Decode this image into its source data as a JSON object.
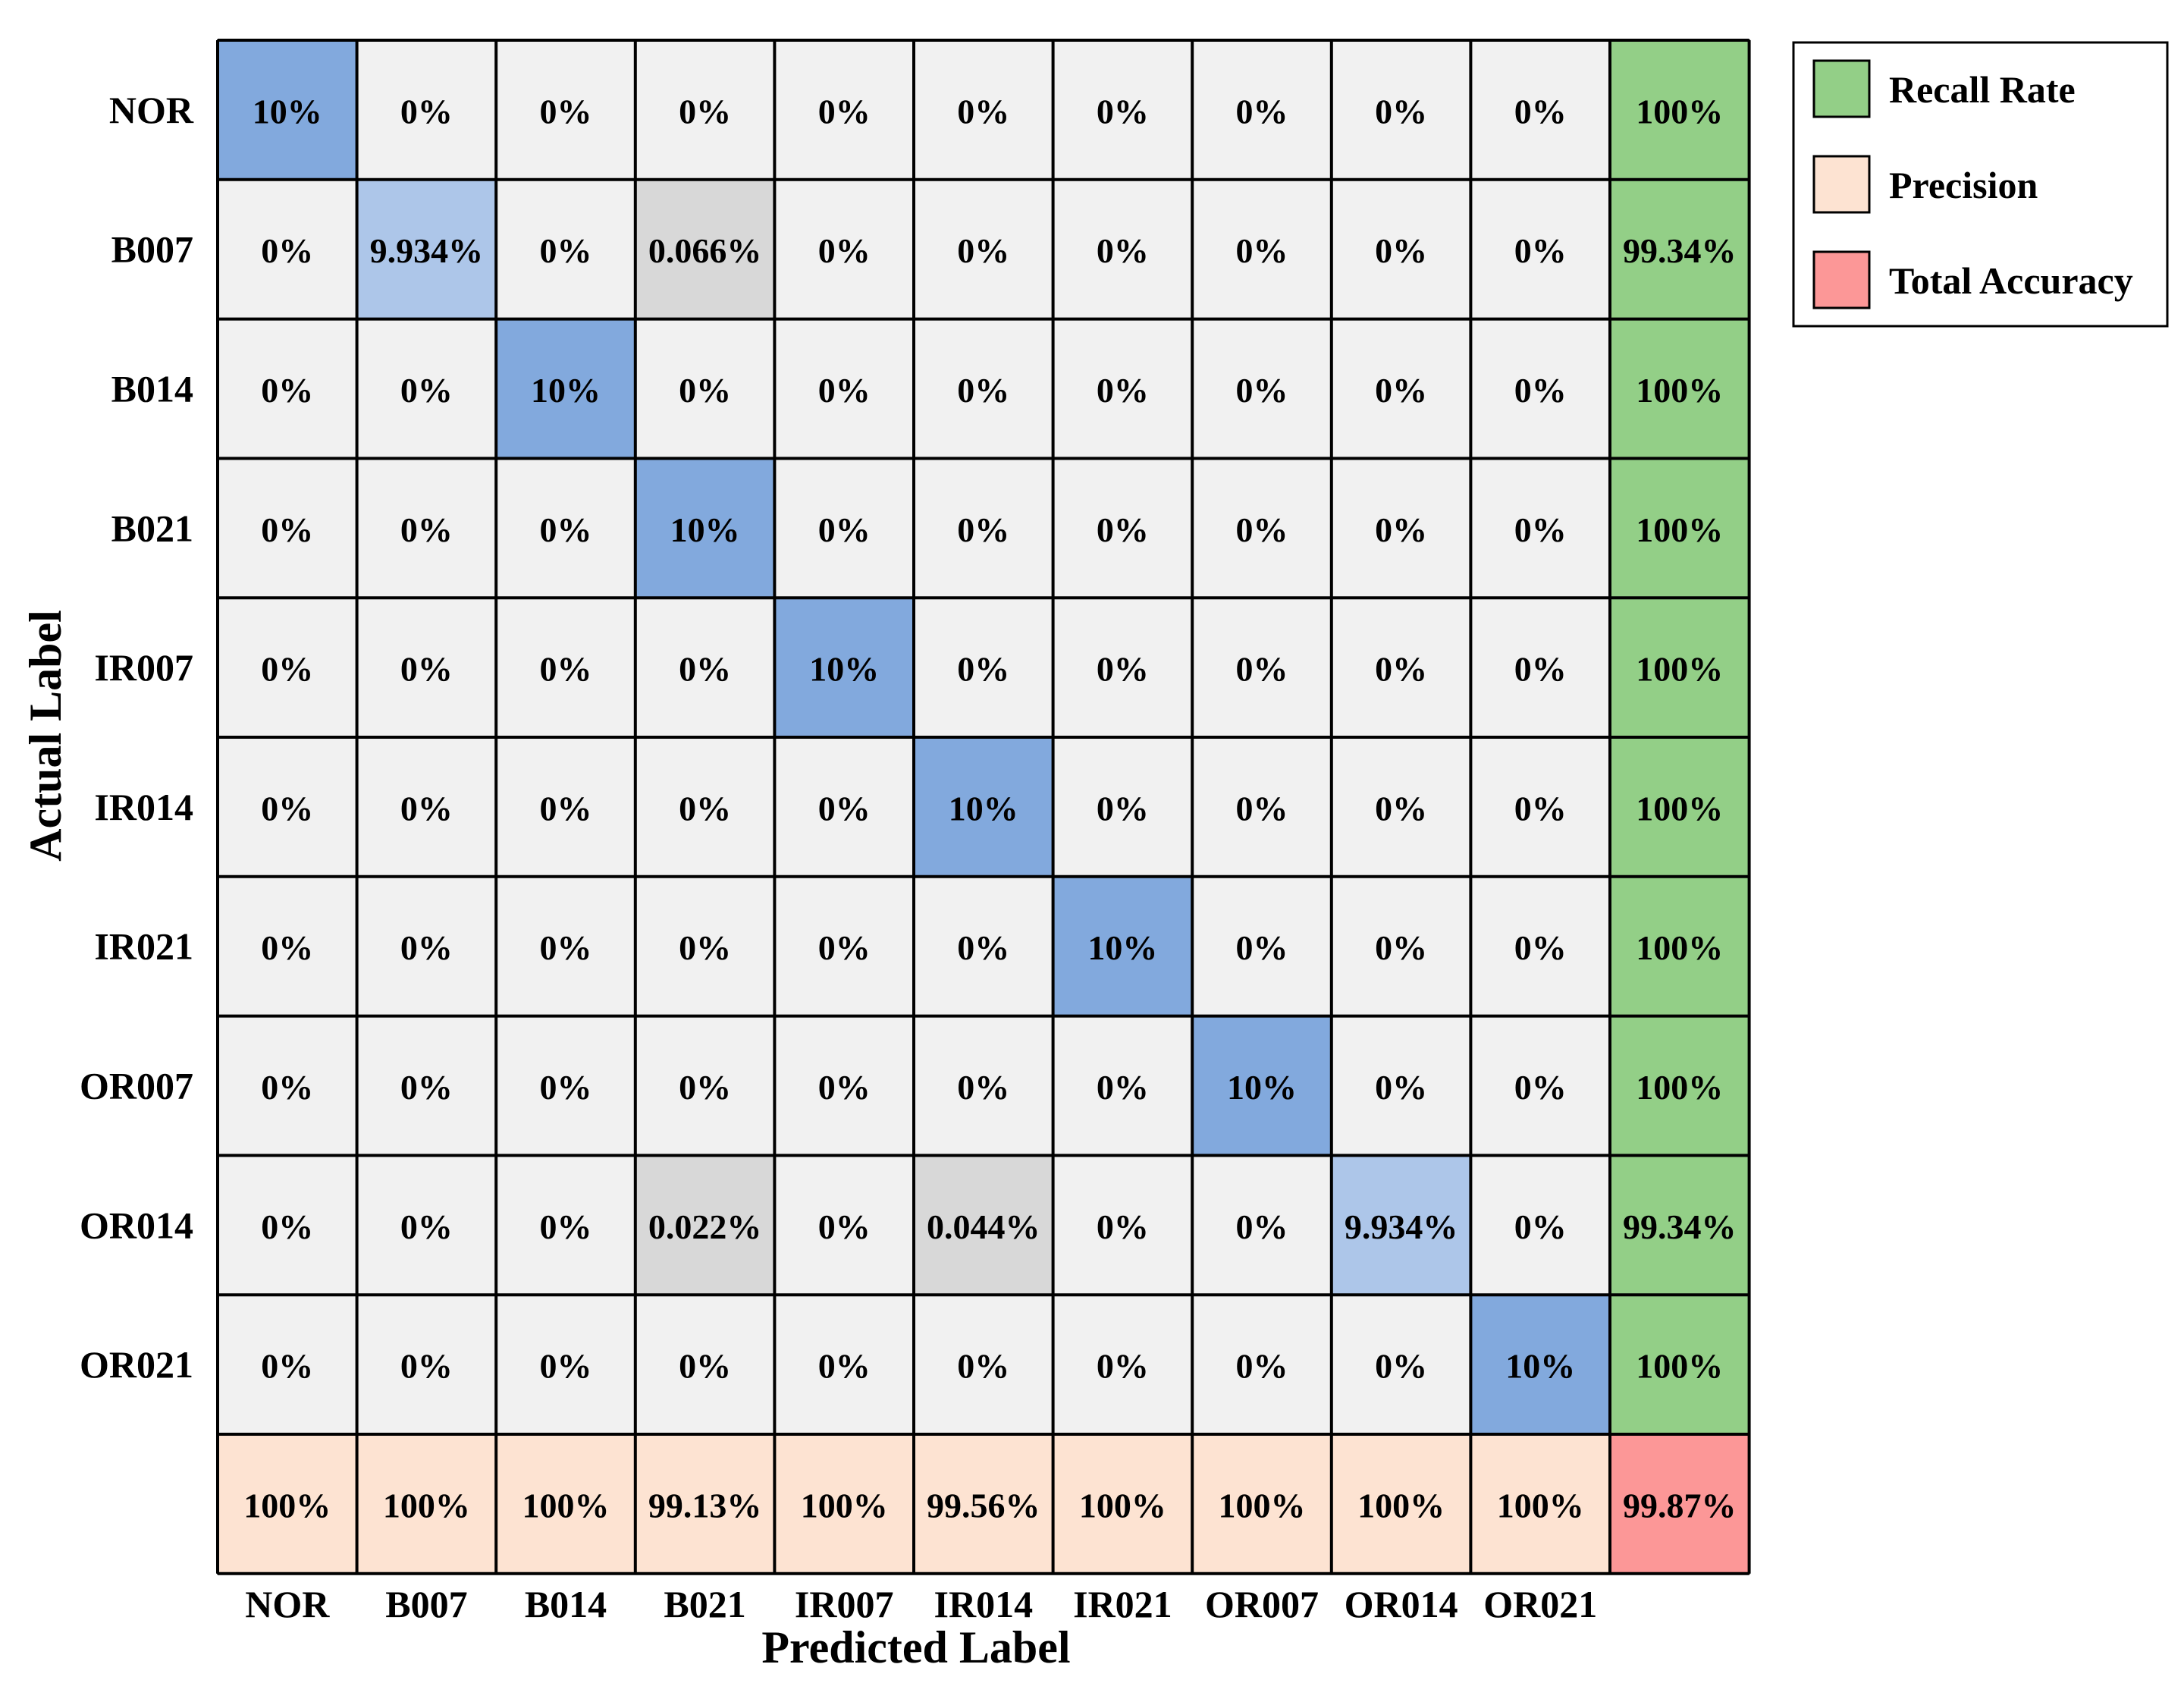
{
  "chart_data": {
    "type": "heatmap",
    "title": "",
    "xlabel": "Predicted Label",
    "ylabel": "Actual Label",
    "row_labels": [
      "NOR",
      "B007",
      "B014",
      "B021",
      "IR007",
      "IR014",
      "IR021",
      "OR007",
      "OR014",
      "OR021"
    ],
    "col_labels": [
      "NOR",
      "B007",
      "B014",
      "B021",
      "IR007",
      "IR014",
      "IR021",
      "OR007",
      "OR014",
      "OR021"
    ],
    "values": [
      [
        "10%",
        "0%",
        "0%",
        "0%",
        "0%",
        "0%",
        "0%",
        "0%",
        "0%",
        "0%"
      ],
      [
        "0%",
        "9.934%",
        "0%",
        "0.066%",
        "0%",
        "0%",
        "0%",
        "0%",
        "0%",
        "0%"
      ],
      [
        "0%",
        "0%",
        "10%",
        "0%",
        "0%",
        "0%",
        "0%",
        "0%",
        "0%",
        "0%"
      ],
      [
        "0%",
        "0%",
        "0%",
        "10%",
        "0%",
        "0%",
        "0%",
        "0%",
        "0%",
        "0%"
      ],
      [
        "0%",
        "0%",
        "0%",
        "0%",
        "10%",
        "0%",
        "0%",
        "0%",
        "0%",
        "0%"
      ],
      [
        "0%",
        "0%",
        "0%",
        "0%",
        "0%",
        "10%",
        "0%",
        "0%",
        "0%",
        "0%"
      ],
      [
        "0%",
        "0%",
        "0%",
        "0%",
        "0%",
        "0%",
        "10%",
        "0%",
        "0%",
        "0%"
      ],
      [
        "0%",
        "0%",
        "0%",
        "0%",
        "0%",
        "0%",
        "0%",
        "10%",
        "0%",
        "0%"
      ],
      [
        "0%",
        "0%",
        "0%",
        "0.022%",
        "0%",
        "0.044%",
        "0%",
        "0%",
        "9.934%",
        "0%"
      ],
      [
        "0%",
        "0%",
        "0%",
        "0%",
        "0%",
        "0%",
        "0%",
        "0%",
        "0%",
        "10%"
      ]
    ],
    "recall_rate": [
      "100%",
      "99.34%",
      "100%",
      "100%",
      "100%",
      "100%",
      "100%",
      "100%",
      "99.34%",
      "100%"
    ],
    "precision": [
      "100%",
      "100%",
      "100%",
      "99.13%",
      "100%",
      "99.56%",
      "100%",
      "100%",
      "100%",
      "100%"
    ],
    "total_accuracy": "99.87%",
    "legend": [
      {
        "label": "Recall Rate",
        "color": "#93cf87"
      },
      {
        "label": "Precision",
        "color": "#fde3d2"
      },
      {
        "label": "Total Accuracy",
        "color": "#fc9797"
      }
    ],
    "legend_position": "top-right",
    "colors": {
      "diagonal_full": "#82a9dd",
      "diagonal_partial": "#adc6e9",
      "misclassified": "#d8d8d8",
      "zero": "#f1f1f1",
      "recall": "#93cf87",
      "precision": "#fde3d2",
      "total": "#fc9797",
      "border": "#000000"
    }
  }
}
